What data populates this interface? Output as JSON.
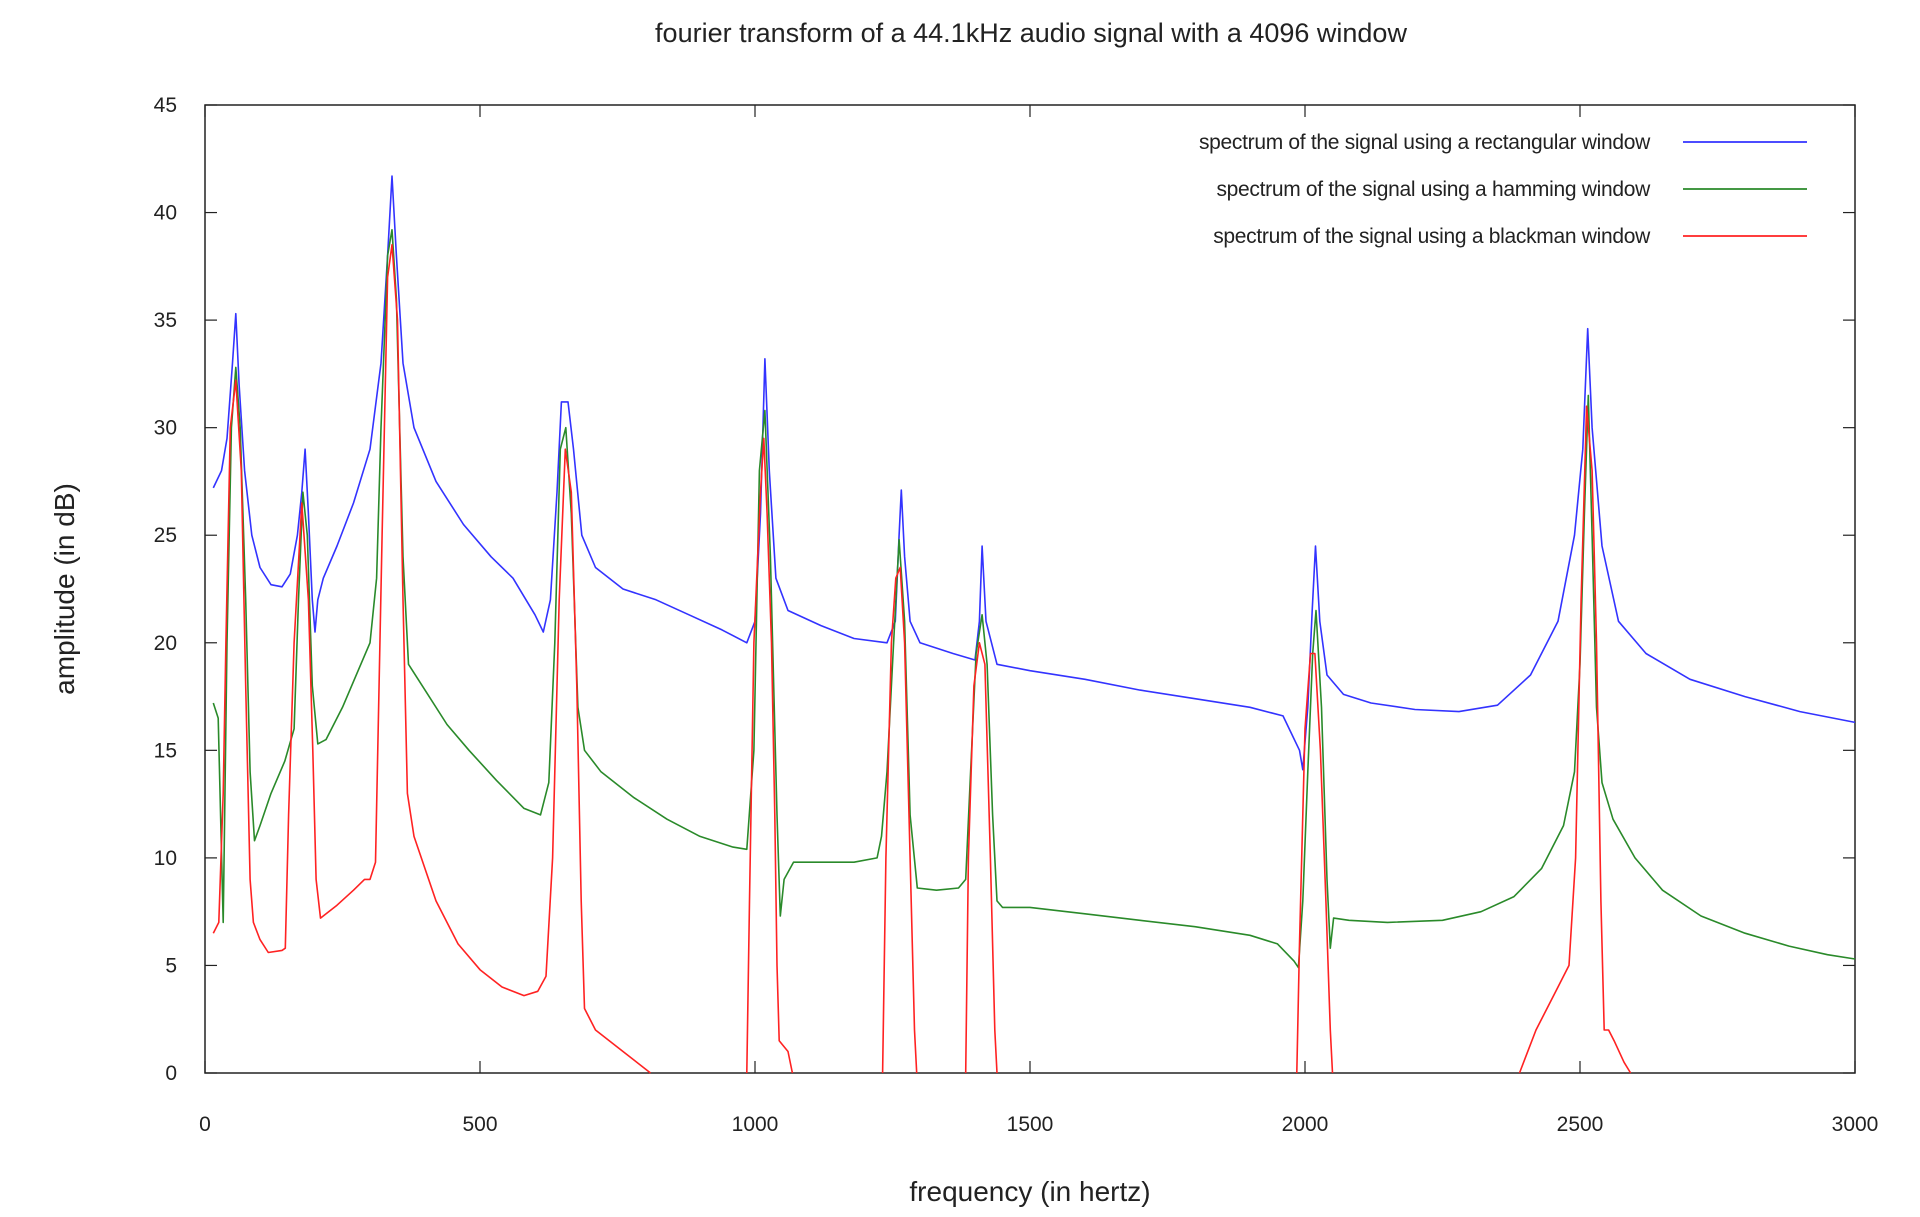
{
  "chart_data": {
    "type": "line",
    "title": "fourier transform of a 44.1kHz audio signal with a 4096 window",
    "xlabel": "frequency (in hertz)",
    "ylabel": "amplitude (in dB)",
    "xlim": [
      0,
      3000
    ],
    "ylim": [
      0,
      45
    ],
    "xticks": [
      0,
      500,
      1000,
      1500,
      2000,
      2500,
      3000
    ],
    "yticks": [
      0,
      5,
      10,
      15,
      20,
      25,
      30,
      35,
      40,
      45
    ],
    "grid": false,
    "legend_position": "top-right",
    "series": [
      {
        "name": "spectrum of the signal using a rectangular window",
        "color": "#3333ff",
        "points": [
          [
            15,
            27.2
          ],
          [
            30,
            28
          ],
          [
            40,
            29.5
          ],
          [
            50,
            33
          ],
          [
            56,
            35.3
          ],
          [
            62,
            32
          ],
          [
            72,
            28
          ],
          [
            85,
            25
          ],
          [
            100,
            23.5
          ],
          [
            120,
            22.7
          ],
          [
            140,
            22.6
          ],
          [
            155,
            23.2
          ],
          [
            168,
            25
          ],
          [
            176,
            27
          ],
          [
            182,
            29
          ],
          [
            188,
            26
          ],
          [
            195,
            22
          ],
          [
            200,
            20.5
          ],
          [
            205,
            22
          ],
          [
            215,
            23
          ],
          [
            240,
            24.5
          ],
          [
            270,
            26.5
          ],
          [
            300,
            29
          ],
          [
            320,
            33
          ],
          [
            332,
            38
          ],
          [
            340,
            41.7
          ],
          [
            348,
            38
          ],
          [
            360,
            33
          ],
          [
            380,
            30
          ],
          [
            420,
            27.5
          ],
          [
            470,
            25.5
          ],
          [
            520,
            24
          ],
          [
            560,
            23
          ],
          [
            600,
            21.3
          ],
          [
            615,
            20.5
          ],
          [
            628,
            22
          ],
          [
            640,
            27
          ],
          [
            648,
            31.2
          ],
          [
            660,
            31.2
          ],
          [
            670,
            29
          ],
          [
            685,
            25
          ],
          [
            710,
            23.5
          ],
          [
            760,
            22.5
          ],
          [
            820,
            22
          ],
          [
            880,
            21.3
          ],
          [
            940,
            20.6
          ],
          [
            985,
            20
          ],
          [
            1000,
            21
          ],
          [
            1010,
            26
          ],
          [
            1018,
            33.2
          ],
          [
            1026,
            28
          ],
          [
            1038,
            23
          ],
          [
            1060,
            21.5
          ],
          [
            1120,
            20.8
          ],
          [
            1180,
            20.2
          ],
          [
            1240,
            20
          ],
          [
            1255,
            21
          ],
          [
            1262,
            25
          ],
          [
            1266,
            27.1
          ],
          [
            1272,
            24
          ],
          [
            1282,
            21
          ],
          [
            1300,
            20
          ],
          [
            1360,
            19.5
          ],
          [
            1400,
            19.2
          ],
          [
            1408,
            21
          ],
          [
            1413,
            24.5
          ],
          [
            1420,
            21
          ],
          [
            1440,
            19
          ],
          [
            1500,
            18.7
          ],
          [
            1600,
            18.3
          ],
          [
            1700,
            17.8
          ],
          [
            1800,
            17.4
          ],
          [
            1900,
            17
          ],
          [
            1960,
            16.6
          ],
          [
            1990,
            15
          ],
          [
            1996,
            14.1
          ],
          [
            2005,
            17
          ],
          [
            2013,
            21.5
          ],
          [
            2019,
            24.5
          ],
          [
            2027,
            21
          ],
          [
            2040,
            18.5
          ],
          [
            2070,
            17.6
          ],
          [
            2120,
            17.2
          ],
          [
            2200,
            16.9
          ],
          [
            2280,
            16.8
          ],
          [
            2350,
            17.1
          ],
          [
            2410,
            18.5
          ],
          [
            2460,
            21
          ],
          [
            2490,
            25
          ],
          [
            2505,
            29
          ],
          [
            2514,
            34.6
          ],
          [
            2522,
            30
          ],
          [
            2540,
            24.5
          ],
          [
            2570,
            21
          ],
          [
            2620,
            19.5
          ],
          [
            2700,
            18.3
          ],
          [
            2800,
            17.5
          ],
          [
            2900,
            16.8
          ],
          [
            3000,
            16.3
          ]
        ]
      },
      {
        "name": "spectrum of the signal using a hamming window",
        "color": "#2a8a2a",
        "points": [
          [
            15,
            17.2
          ],
          [
            24,
            16.5
          ],
          [
            33,
            7
          ],
          [
            40,
            20
          ],
          [
            48,
            30
          ],
          [
            56,
            32.8
          ],
          [
            64,
            30
          ],
          [
            74,
            22
          ],
          [
            82,
            14
          ],
          [
            90,
            10.8
          ],
          [
            100,
            11.5
          ],
          [
            120,
            13
          ],
          [
            145,
            14.5
          ],
          [
            162,
            16
          ],
          [
            170,
            22
          ],
          [
            178,
            27
          ],
          [
            186,
            25
          ],
          [
            195,
            18
          ],
          [
            205,
            15.3
          ],
          [
            220,
            15.5
          ],
          [
            250,
            17
          ],
          [
            280,
            18.8
          ],
          [
            300,
            20
          ],
          [
            312,
            23
          ],
          [
            320,
            30
          ],
          [
            332,
            38
          ],
          [
            340,
            39.2
          ],
          [
            348,
            36
          ],
          [
            360,
            24
          ],
          [
            370,
            19
          ],
          [
            400,
            17.8
          ],
          [
            440,
            16.2
          ],
          [
            480,
            15
          ],
          [
            530,
            13.6
          ],
          [
            580,
            12.3
          ],
          [
            610,
            12
          ],
          [
            625,
            13.5
          ],
          [
            636,
            20
          ],
          [
            646,
            29
          ],
          [
            656,
            30
          ],
          [
            666,
            26
          ],
          [
            678,
            17
          ],
          [
            690,
            15
          ],
          [
            720,
            14
          ],
          [
            780,
            12.8
          ],
          [
            840,
            11.8
          ],
          [
            900,
            11
          ],
          [
            960,
            10.5
          ],
          [
            985,
            10.4
          ],
          [
            998,
            15
          ],
          [
            1008,
            28
          ],
          [
            1018,
            30.8
          ],
          [
            1028,
            24
          ],
          [
            1040,
            12
          ],
          [
            1046,
            7.3
          ],
          [
            1053,
            9
          ],
          [
            1070,
            9.8
          ],
          [
            1120,
            9.8
          ],
          [
            1180,
            9.8
          ],
          [
            1222,
            10
          ],
          [
            1230,
            11
          ],
          [
            1240,
            14
          ],
          [
            1252,
            20
          ],
          [
            1262,
            24.8
          ],
          [
            1272,
            21
          ],
          [
            1282,
            12
          ],
          [
            1295,
            8.6
          ],
          [
            1330,
            8.5
          ],
          [
            1370,
            8.6
          ],
          [
            1383,
            9
          ],
          [
            1392,
            14
          ],
          [
            1402,
            19.5
          ],
          [
            1413,
            21.3
          ],
          [
            1422,
            19
          ],
          [
            1432,
            12
          ],
          [
            1440,
            8
          ],
          [
            1450,
            7.7
          ],
          [
            1500,
            7.7
          ],
          [
            1600,
            7.4
          ],
          [
            1700,
            7.1
          ],
          [
            1800,
            6.8
          ],
          [
            1900,
            6.4
          ],
          [
            1950,
            6
          ],
          [
            1980,
            5.2
          ],
          [
            1988,
            4.9
          ],
          [
            1996,
            8
          ],
          [
            2005,
            14
          ],
          [
            2014,
            19.5
          ],
          [
            2020,
            21.5
          ],
          [
            2030,
            17
          ],
          [
            2040,
            9
          ],
          [
            2046,
            5.8
          ],
          [
            2052,
            7.2
          ],
          [
            2080,
            7.1
          ],
          [
            2150,
            7
          ],
          [
            2250,
            7.1
          ],
          [
            2320,
            7.5
          ],
          [
            2380,
            8.2
          ],
          [
            2430,
            9.5
          ],
          [
            2470,
            11.5
          ],
          [
            2490,
            14
          ],
          [
            2500,
            19
          ],
          [
            2508,
            26
          ],
          [
            2515,
            31.5
          ],
          [
            2522,
            25
          ],
          [
            2530,
            17
          ],
          [
            2540,
            13.5
          ],
          [
            2560,
            11.8
          ],
          [
            2600,
            10
          ],
          [
            2650,
            8.5
          ],
          [
            2720,
            7.3
          ],
          [
            2800,
            6.5
          ],
          [
            2880,
            5.9
          ],
          [
            2950,
            5.5
          ],
          [
            3000,
            5.3
          ]
        ]
      },
      {
        "name": "spectrum of the signal using a blackman window",
        "color": "#ff2222",
        "points": [
          [
            15,
            6.5
          ],
          [
            25,
            7
          ],
          [
            33,
            13
          ],
          [
            38,
            20
          ],
          [
            46,
            30
          ],
          [
            56,
            32.2
          ],
          [
            66,
            28
          ],
          [
            74,
            18
          ],
          [
            82,
            9
          ],
          [
            88,
            7
          ],
          [
            100,
            6.2
          ],
          [
            115,
            5.6
          ],
          [
            140,
            5.7
          ],
          [
            146,
            5.8
          ],
          [
            152,
            12
          ],
          [
            162,
            20
          ],
          [
            176,
            26.5
          ],
          [
            188,
            22
          ],
          [
            196,
            15
          ],
          [
            202,
            9
          ],
          [
            210,
            7.2
          ],
          [
            240,
            7.8
          ],
          [
            270,
            8.5
          ],
          [
            290,
            9
          ],
          [
            300,
            9
          ],
          [
            310,
            9.8
          ],
          [
            322,
            25
          ],
          [
            332,
            37
          ],
          [
            340,
            38.5
          ],
          [
            350,
            35
          ],
          [
            360,
            22
          ],
          [
            368,
            13
          ],
          [
            380,
            11
          ],
          [
            420,
            8
          ],
          [
            460,
            6
          ],
          [
            500,
            4.8
          ],
          [
            540,
            4
          ],
          [
            580,
            3.6
          ],
          [
            605,
            3.8
          ],
          [
            620,
            4.5
          ],
          [
            632,
            10
          ],
          [
            644,
            22
          ],
          [
            655,
            29
          ],
          [
            666,
            27
          ],
          [
            676,
            18
          ],
          [
            684,
            8
          ],
          [
            690,
            3
          ],
          [
            710,
            2
          ],
          [
            760,
            1
          ],
          [
            810,
            0
          ]
        ],
        "segments": [
          [
            [
              985,
              0
            ],
            [
              990,
              8
            ],
            [
              998,
              20
            ],
            [
              1010,
              27
            ],
            [
              1016,
              29.5
            ],
            [
              1022,
              26
            ],
            [
              1030,
              20
            ],
            [
              1036,
              12
            ],
            [
              1040,
              5
            ],
            [
              1044,
              1.5
            ],
            [
              1060,
              1
            ],
            [
              1068,
              0
            ]
          ],
          [
            [
              1232,
              0
            ],
            [
              1238,
              10
            ],
            [
              1248,
              20
            ],
            [
              1256,
              23
            ],
            [
              1264,
              23.5
            ],
            [
              1272,
              20
            ],
            [
              1282,
              10
            ],
            [
              1290,
              2
            ],
            [
              1294,
              0
            ]
          ],
          [
            [
              1383,
              0
            ],
            [
              1388,
              10
            ],
            [
              1398,
              18
            ],
            [
              1408,
              20
            ],
            [
              1418,
              19
            ],
            [
              1428,
              10
            ],
            [
              1436,
              2
            ],
            [
              1440,
              0
            ]
          ],
          [
            [
              1985,
              0
            ],
            [
              1990,
              6
            ],
            [
              2000,
              16
            ],
            [
              2010,
              19.5
            ],
            [
              2018,
              19.5
            ],
            [
              2028,
              15
            ],
            [
              2038,
              8
            ],
            [
              2046,
              2
            ],
            [
              2050,
              0
            ]
          ],
          [
            [
              2390,
              0
            ],
            [
              2420,
              2
            ],
            [
              2460,
              4
            ],
            [
              2480,
              5
            ],
            [
              2492,
              10
            ],
            [
              2502,
              22
            ],
            [
              2512,
              31
            ],
            [
              2522,
              28
            ],
            [
              2530,
              20
            ],
            [
              2538,
              8
            ],
            [
              2544,
              2
            ],
            [
              2552,
              2
            ],
            [
              2562,
              1.5
            ],
            [
              2580,
              0.5
            ],
            [
              2592,
              0
            ]
          ]
        ]
      }
    ]
  }
}
